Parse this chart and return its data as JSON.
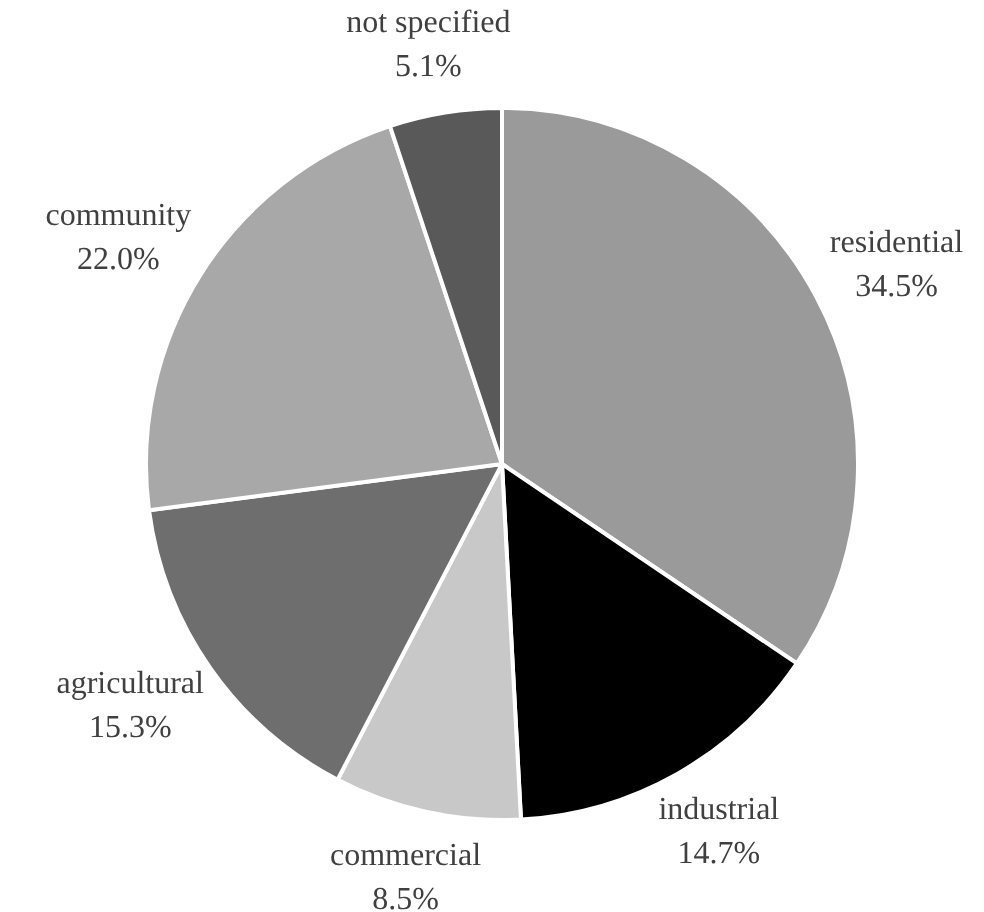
{
  "chart_data": {
    "type": "pie",
    "categories": [
      "residential",
      "industrial",
      "commercial",
      "agricultural",
      "community",
      "not specified"
    ],
    "values": [
      34.5,
      14.7,
      8.5,
      15.3,
      22.0,
      5.1
    ],
    "value_labels": [
      "34.5%",
      "14.7%",
      "8.5%",
      "15.3%",
      "22.0%",
      "5.1%"
    ],
    "colors": [
      "#9a9a9a",
      "#000000",
      "#c8c8c8",
      "#6e6e6e",
      "#a8a8a8",
      "#595959"
    ]
  }
}
